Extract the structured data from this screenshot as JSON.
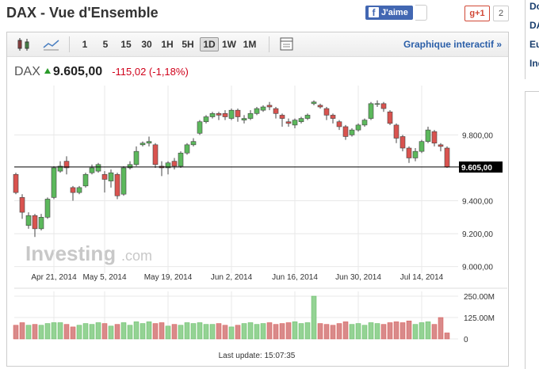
{
  "header": {
    "title": "DAX - Vue d'Ensemble",
    "like": "J'aime",
    "gplus": "g+1",
    "gplus_count": "2"
  },
  "sidebar": [
    "Do",
    "DA",
    "Eu",
    "Ind"
  ],
  "toolbar": {
    "intervals": [
      "1",
      "5",
      "15",
      "30",
      "1H",
      "5H",
      "1D",
      "1W",
      "1M"
    ],
    "active": "1D",
    "link": "Graphique interactif »"
  },
  "quote": {
    "name": "DAX",
    "price": "9.605,00",
    "change": "-115,02 (-1,18%)"
  },
  "watermark": {
    "brand": "Investing",
    "domain": ".com"
  },
  "footer": "Last update: 15:07:35",
  "chart_data": {
    "type": "candlestick",
    "up_color": "#5cb85c",
    "down_color": "#d9534f",
    "wick_color": "#444444",
    "grid": true,
    "categories": [
      null,
      null,
      null,
      null,
      null,
      null,
      "Apr 21, 2014",
      null,
      null,
      null,
      null,
      null,
      null,
      null,
      "May 5, 2014",
      null,
      null,
      null,
      null,
      null,
      null,
      null,
      null,
      null,
      "May 19, 2014",
      null,
      null,
      null,
      null,
      null,
      null,
      null,
      null,
      null,
      "Jun 2, 2014",
      null,
      null,
      null,
      null,
      null,
      null,
      null,
      null,
      null,
      "Jun 16, 2014",
      null,
      null,
      null,
      null,
      null,
      null,
      null,
      null,
      null,
      "Jun 30, 2014",
      null,
      null,
      null,
      null,
      null,
      null,
      null,
      null,
      null,
      "Jul 14, 2014",
      null,
      null,
      null,
      null
    ],
    "open": [
      9560,
      9420,
      9250,
      9310,
      9230,
      9300,
      9420,
      9580,
      9640,
      9480,
      9450,
      9490,
      9570,
      9580,
      9560,
      9520,
      9560,
      9440,
      9600,
      9620,
      9740,
      9750,
      9740,
      9610,
      9600,
      9640,
      9610,
      9690,
      9740,
      9810,
      9880,
      9910,
      9930,
      9930,
      9900,
      9950,
      9890,
      9900,
      9930,
      9950,
      9980,
      9960,
      9920,
      9880,
      9860,
      9880,
      9900,
      9990,
      9980,
      9960,
      9920,
      9880,
      9850,
      9800,
      9830,
      9860,
      9900,
      9990,
      9990,
      9940,
      9860,
      9790,
      9720,
      9660,
      9700,
      9760,
      9820,
      9740,
      9720
    ],
    "high": [
      9570,
      9440,
      9330,
      9320,
      9320,
      9420,
      9610,
      9640,
      9670,
      9490,
      9490,
      9570,
      9620,
      9630,
      9580,
      9590,
      9570,
      9610,
      9640,
      9730,
      9760,
      9790,
      9750,
      9640,
      9640,
      9660,
      9700,
      9750,
      9780,
      9890,
      9920,
      9940,
      9940,
      9950,
      9960,
      9960,
      9920,
      9950,
      9970,
      9980,
      10000,
      9970,
      9930,
      9900,
      9900,
      9910,
      9930,
      10010,
      9990,
      9970,
      9930,
      9890,
      9860,
      9840,
      9870,
      9900,
      10000,
      10010,
      10000,
      9950,
      9870,
      9800,
      9730,
      9720,
      9770,
      9850,
      9830,
      9750,
      9730
    ],
    "low": [
      9440,
      9290,
      9230,
      9180,
      9220,
      9290,
      9410,
      9570,
      9560,
      9400,
      9440,
      9480,
      9560,
      9570,
      9450,
      9480,
      9410,
      9430,
      9590,
      9610,
      9730,
      9730,
      9600,
      9550,
      9560,
      9590,
      9600,
      9680,
      9730,
      9800,
      9870,
      9900,
      9890,
      9890,
      9890,
      9880,
      9870,
      9890,
      9920,
      9940,
      9950,
      9900,
      9850,
      9850,
      9840,
      9870,
      9890,
      9980,
      9960,
      9890,
      9870,
      9830,
      9770,
      9790,
      9820,
      9850,
      9890,
      9970,
      9940,
      9860,
      9750,
      9700,
      9630,
      9640,
      9690,
      9750,
      9730,
      9700,
      9600
    ],
    "close": [
      9450,
      9330,
      9310,
      9230,
      9300,
      9410,
      9600,
      9610,
      9600,
      9450,
      9480,
      9560,
      9600,
      9620,
      9530,
      9570,
      9430,
      9600,
      9620,
      9700,
      9750,
      9760,
      9620,
      9600,
      9630,
      9610,
      9690,
      9740,
      9760,
      9880,
      9910,
      9930,
      9920,
      9910,
      9950,
      9910,
      9900,
      9930,
      9960,
      9970,
      9970,
      9930,
      9900,
      9870,
      9890,
      9900,
      9920,
      10000,
      9970,
      9920,
      9900,
      9850,
      9790,
      9830,
      9860,
      9890,
      9990,
      9990,
      9960,
      9870,
      9780,
      9720,
      9660,
      9700,
      9760,
      9830,
      9750,
      9730,
      9605
    ],
    "ylim": [
      8960,
      10100
    ],
    "yticks": [
      {
        "value": 9000,
        "label": "9.000,00"
      },
      {
        "value": 9200,
        "label": "9.200,00"
      },
      {
        "value": 9400,
        "label": "9.400,00"
      },
      {
        "value": 9800,
        "label": "9.800,00"
      }
    ],
    "price_marker": {
      "value": 9605,
      "label": "9.605,00"
    },
    "volume": [
      80,
      95,
      80,
      85,
      80,
      90,
      95,
      95,
      85,
      70,
      80,
      90,
      85,
      95,
      90,
      75,
      85,
      95,
      80,
      100,
      90,
      100,
      90,
      95,
      75,
      85,
      80,
      95,
      90,
      95,
      85,
      85,
      90,
      80,
      70,
      80,
      90,
      95,
      85,
      90,
      95,
      85,
      90,
      95,
      100,
      90,
      95,
      250,
      90,
      85,
      80,
      90,
      100,
      85,
      90,
      80,
      95,
      90,
      85,
      95,
      100,
      95,
      105,
      85,
      95,
      100,
      85,
      125,
      35
    ],
    "volume_up_color": "#94d394",
    "volume_down_color": "#d98a8a",
    "volume_ylim": [
      0,
      250
    ],
    "volume_yticks": [
      0,
      {
        "value": 125,
        "label": "125.00M"
      },
      {
        "value": 250,
        "label": "250.00M"
      }
    ]
  }
}
